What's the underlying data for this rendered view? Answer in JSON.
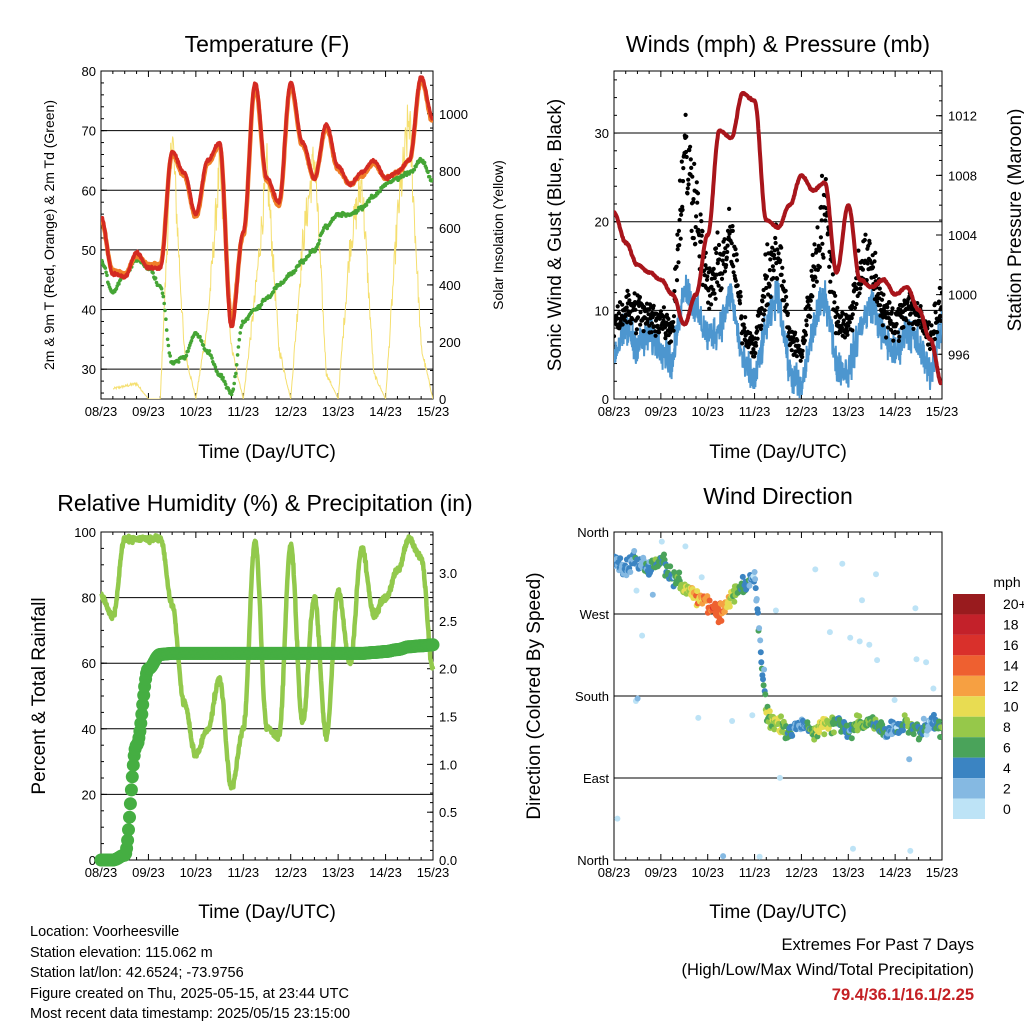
{
  "charts": {
    "temperature": {
      "title": "Temperature (F)",
      "ylabel": "2m & 9m T (Red, Orange) & 2m Td (Green)",
      "y2label": "Solar Insolation (Yellow)",
      "xlabel": "Time (Day/UTC)"
    },
    "winds": {
      "title": "Winds (mph) & Pressure (mb)",
      "ylabel": "Sonic Wind & Gust (Blue, Black)",
      "y2label": "Station Pressure (Maroon)",
      "xlabel": "Time (Day/UTC)"
    },
    "humidity": {
      "title": "Relative Humidity (%) & Precipitation (in)",
      "ylabel": "Percent & Total Rainfall",
      "xlabel": "Time (Day/UTC)"
    },
    "direction": {
      "title": "Wind Direction",
      "ylabel": "Direction (Colored By Speed)",
      "xlabel": "Time (Day/UTC)",
      "colorbar_title": "mph"
    }
  },
  "colors": {
    "temp2m": "#d42a22",
    "temp9m": "#f07e28",
    "dewpoint": "#45a535",
    "solar": "#f5df6f",
    "wind": "#4d96cf",
    "gust": "#000000",
    "pressure": "#a8151b",
    "rh": "#92c94c",
    "precip": "#45ae42",
    "extremes": "#c42024"
  },
  "footer": {
    "location": "Location: Voorheesville",
    "elevation": "Station elevation: 115.062 m",
    "latlon": "Station lat/lon: 42.6524; -73.9756",
    "created": "Figure created on Thu, 2025-05-15, at 23:44 UTC",
    "recent": "Most recent data timestamp: 2025/05/15 23:15:00"
  },
  "extremes": {
    "title": "Extremes For Past 7 Days",
    "subtitle": "(High/Low/Max Wind/Total Precipitation)",
    "values": "79.4/36.1/16.1/2.25"
  },
  "chart_data": [
    {
      "type": "line",
      "title": "Temperature (F)",
      "xlabel": "Time (Day/UTC)",
      "ylabel": "2m & 9m T (Red, Orange) & 2m Td (Green)",
      "y2label": "Solar Insolation (Yellow)",
      "x": [
        8.0,
        8.25,
        8.5,
        8.75,
        9.0,
        9.25,
        9.5,
        9.75,
        10.0,
        10.25,
        10.5,
        10.75,
        11.0,
        11.25,
        11.5,
        11.75,
        12.0,
        12.25,
        12.5,
        12.75,
        13.0,
        13.25,
        13.5,
        13.75,
        14.0,
        14.25,
        14.5,
        14.75,
        15.0
      ],
      "xticks": [
        "08/23",
        "09/23",
        "10/23",
        "11/23",
        "12/23",
        "13/23",
        "14/23",
        "15/23"
      ],
      "ylim": [
        25,
        80
      ],
      "yticks": [
        30,
        40,
        50,
        60,
        70,
        80
      ],
      "y2lim": [
        0,
        1150
      ],
      "y2ticks": [
        0,
        200,
        400,
        600,
        800,
        1000
      ],
      "series": [
        {
          "name": "2m T",
          "axis": "left",
          "values": [
            55.5,
            46,
            45.5,
            49.5,
            47,
            47,
            66.5,
            63,
            56,
            65,
            68,
            37,
            53,
            78,
            62,
            58,
            78,
            68,
            62,
            71,
            64,
            61,
            63,
            65,
            62,
            63,
            65,
            79,
            72
          ]
        },
        {
          "name": "9m T",
          "axis": "left",
          "values": [
            55,
            46.5,
            46,
            49,
            47.5,
            47.5,
            66,
            62.5,
            55.5,
            64.5,
            67.5,
            38,
            52.5,
            77.5,
            61.5,
            57.5,
            77.5,
            67.5,
            62,
            70.5,
            63.5,
            61,
            62.5,
            64.5,
            62,
            63,
            65,
            78.5,
            71.5
          ]
        },
        {
          "name": "2m Td",
          "axis": "left",
          "values": [
            48,
            43,
            46,
            48.5,
            47,
            44,
            31,
            32,
            36,
            33,
            29,
            26,
            38,
            40,
            42,
            44,
            46,
            48,
            50,
            54,
            56,
            56,
            57,
            59,
            61,
            62,
            63,
            65,
            61.5
          ]
        },
        {
          "name": "Solar",
          "axis": "right",
          "values": [
            null,
            40,
            50,
            60,
            0,
            0,
            1050,
            200,
            0,
            300,
            900,
            200,
            0,
            400,
            900,
            200,
            0,
            600,
            950,
            100,
            0,
            600,
            850,
            100,
            0,
            700,
            1100,
            200,
            0
          ]
        }
      ]
    },
    {
      "type": "line",
      "title": "Winds (mph) & Pressure (mb)",
      "xlabel": "Time (Day/UTC)",
      "ylabel": "Sonic Wind & Gust (Blue, Black)",
      "y2label": "Station Pressure (Maroon)",
      "x": [
        8.0,
        8.25,
        8.5,
        8.75,
        9.0,
        9.25,
        9.5,
        9.75,
        10.0,
        10.25,
        10.5,
        10.75,
        11.0,
        11.25,
        11.5,
        11.75,
        12.0,
        12.25,
        12.5,
        12.75,
        13.0,
        13.25,
        13.5,
        13.75,
        14.0,
        14.25,
        14.5,
        14.75,
        15.0
      ],
      "xticks": [
        "08/23",
        "09/23",
        "10/23",
        "11/23",
        "12/23",
        "13/23",
        "14/23",
        "15/23"
      ],
      "ylim": [
        0,
        37
      ],
      "yticks": [
        0,
        10,
        20,
        30
      ],
      "y2lim": [
        993,
        1015
      ],
      "y2ticks": [
        996,
        1000,
        1004,
        1008,
        1012
      ],
      "series": [
        {
          "name": "Wind",
          "axis": "left",
          "values": [
            5,
            8,
            6,
            7,
            6,
            4,
            13,
            10,
            7,
            8,
            12,
            4,
            2,
            8,
            12,
            3,
            1,
            8,
            12,
            4,
            3,
            8,
            11,
            7,
            5,
            8,
            6,
            3,
            8
          ]
        },
        {
          "name": "Gust",
          "axis": "left",
          "values": [
            9,
            10,
            10,
            9,
            9,
            8,
            28,
            22,
            12,
            15,
            18,
            8,
            6,
            13,
            17,
            7,
            5,
            14,
            22,
            9,
            8,
            15,
            15,
            10,
            8,
            11,
            9,
            7,
            11
          ]
        },
        {
          "name": "Pressure",
          "axis": "right",
          "values": [
            1005.5,
            1003.5,
            1002,
            1001.5,
            1001,
            1000,
            998,
            1000,
            1004,
            1011,
            1010.5,
            1013.5,
            1013,
            1005,
            1004.5,
            1006,
            1008,
            1007,
            1007.5,
            1001.5,
            1006,
            1001,
            1000.5,
            1001,
            1000,
            1000.5,
            999,
            997,
            994
          ]
        }
      ]
    },
    {
      "type": "line",
      "title": "Relative Humidity (%) & Precipitation (in)",
      "xlabel": "Time (Day/UTC)",
      "ylabel": "Percent & Total Rainfall",
      "x": [
        8.0,
        8.25,
        8.5,
        8.75,
        9.0,
        9.25,
        9.5,
        9.75,
        10.0,
        10.25,
        10.5,
        10.75,
        11.0,
        11.25,
        11.5,
        11.75,
        12.0,
        12.25,
        12.5,
        12.75,
        13.0,
        13.25,
        13.5,
        13.75,
        14.0,
        14.25,
        14.5,
        14.75,
        15.0
      ],
      "xticks": [
        "08/23",
        "09/23",
        "10/23",
        "11/23",
        "12/23",
        "13/23",
        "14/23",
        "15/23"
      ],
      "ylim": [
        0,
        100
      ],
      "yticks": [
        0,
        20,
        40,
        60,
        80,
        100
      ],
      "y2lim": [
        0,
        3.43
      ],
      "y2ticks": [
        0.0,
        0.5,
        1.0,
        1.5,
        2.0,
        2.5,
        3.0
      ],
      "series": [
        {
          "name": "RH",
          "axis": "left",
          "values": [
            81,
            74,
            98,
            98,
            98,
            98,
            78,
            48,
            32,
            40,
            55,
            22,
            40,
            97,
            40,
            38,
            96,
            42,
            80,
            38,
            82,
            60,
            95,
            75,
            80,
            88,
            98,
            92,
            58
          ]
        },
        {
          "name": "Precipitation",
          "axis": "right",
          "values": [
            0,
            0,
            0.05,
            1.2,
            2.0,
            2.15,
            2.16,
            2.16,
            2.16,
            2.16,
            2.16,
            2.16,
            2.16,
            2.16,
            2.16,
            2.16,
            2.16,
            2.16,
            2.16,
            2.16,
            2.16,
            2.16,
            2.16,
            2.17,
            2.18,
            2.2,
            2.23,
            2.24,
            2.25
          ]
        }
      ]
    },
    {
      "type": "scatter",
      "title": "Wind Direction",
      "xlabel": "Time (Day/UTC)",
      "ylabel": "Direction (Colored By Speed)",
      "x": [
        8.0,
        8.25,
        8.5,
        8.75,
        9.0,
        9.25,
        9.5,
        9.75,
        10.0,
        10.25,
        10.5,
        10.75,
        11.0,
        11.25,
        11.5,
        11.75,
        12.0,
        12.25,
        12.5,
        12.75,
        13.0,
        13.25,
        13.5,
        13.75,
        14.0,
        14.25,
        14.5,
        14.75,
        15.0
      ],
      "xticks": [
        "08/23",
        "09/23",
        "10/23",
        "11/23",
        "12/23",
        "13/23",
        "14/23",
        "15/23"
      ],
      "yticks": [
        "North",
        "East",
        "South",
        "West",
        "North"
      ],
      "ylim": [
        0,
        360
      ],
      "ytick_values": [
        0,
        90,
        180,
        270,
        360
      ],
      "series": [
        {
          "name": "Direction",
          "values": [
            330,
            320,
            330,
            320,
            330,
            310,
            300,
            290,
            280,
            270,
            290,
            300,
            310,
            160,
            150,
            140,
            150,
            140,
            150,
            150,
            140,
            150,
            150,
            140,
            145,
            150,
            140,
            150,
            145
          ]
        },
        {
          "name": "Speed",
          "values": [
            4,
            5,
            4,
            6,
            7,
            6,
            9,
            12,
            14,
            15,
            10,
            6,
            3,
            8,
            10,
            6,
            3,
            8,
            11,
            7,
            5,
            9,
            7,
            6,
            4,
            8,
            6,
            3,
            8
          ]
        }
      ],
      "colorbar": {
        "title": "mph",
        "labels": [
          "20+",
          "18",
          "16",
          "14",
          "12",
          "10",
          "8",
          "6",
          "4",
          "2",
          "0"
        ],
        "colors": [
          "#991b1e",
          "#c3212a",
          "#d9302b",
          "#ee6030",
          "#f6a042",
          "#e8dc52",
          "#96c84a",
          "#4aa35a",
          "#3b84c2",
          "#85b9e2",
          "#bde3f6"
        ]
      }
    }
  ]
}
